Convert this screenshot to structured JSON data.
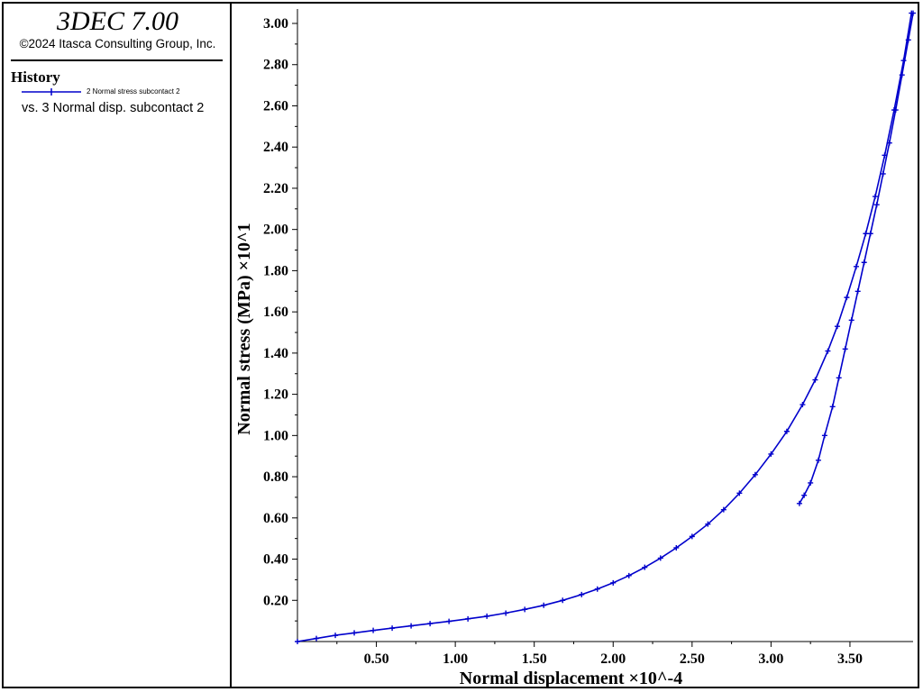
{
  "app": {
    "title": "3DEC 7.00",
    "copyright": "©2024 Itasca Consulting Group, Inc."
  },
  "legend": {
    "heading": "History",
    "series_label": "2 Normal stress subcontact 2",
    "versus_label": "vs. 3 Normal disp. subcontact 2"
  },
  "colors": {
    "series": "#0000cc",
    "axis": "#000000",
    "background": "#ffffff"
  },
  "chart_data": {
    "type": "line",
    "xlabel": "Normal displacement ×10^-4",
    "ylabel": "Normal stress (MPa) ×10^1",
    "xlim": [
      0,
      3.9
    ],
    "ylim": [
      0,
      3.07
    ],
    "x_ticks": [
      "0.50",
      "1.00",
      "1.50",
      "2.00",
      "2.50",
      "3.00",
      "3.50"
    ],
    "y_ticks": [
      "0.20",
      "0.40",
      "0.60",
      "0.80",
      "1.00",
      "1.20",
      "1.40",
      "1.60",
      "1.80",
      "2.00",
      "2.20",
      "2.40",
      "2.60",
      "2.80",
      "3.00"
    ],
    "grid": false,
    "series": [
      {
        "marker": "+",
        "points": [
          [
            0,
            0
          ],
          [
            0.12,
            0.015
          ],
          [
            0.24,
            0.03
          ],
          [
            0.36,
            0.042
          ],
          [
            0.48,
            0.054
          ],
          [
            0.6,
            0.065
          ],
          [
            0.72,
            0.076
          ],
          [
            0.84,
            0.087
          ],
          [
            0.96,
            0.098
          ],
          [
            1.08,
            0.11
          ],
          [
            1.2,
            0.123
          ],
          [
            1.32,
            0.138
          ],
          [
            1.44,
            0.156
          ],
          [
            1.56,
            0.176
          ],
          [
            1.68,
            0.2
          ],
          [
            1.8,
            0.228
          ],
          [
            1.9,
            0.255
          ],
          [
            2.0,
            0.285
          ],
          [
            2.1,
            0.32
          ],
          [
            2.2,
            0.36
          ],
          [
            2.3,
            0.405
          ],
          [
            2.4,
            0.455
          ],
          [
            2.5,
            0.51
          ],
          [
            2.6,
            0.57
          ],
          [
            2.7,
            0.64
          ],
          [
            2.8,
            0.72
          ],
          [
            2.9,
            0.81
          ],
          [
            3.0,
            0.91
          ],
          [
            3.1,
            1.02
          ],
          [
            3.2,
            1.15
          ],
          [
            3.28,
            1.27
          ],
          [
            3.36,
            1.41
          ],
          [
            3.42,
            1.53
          ],
          [
            3.48,
            1.67
          ],
          [
            3.54,
            1.82
          ],
          [
            3.6,
            1.98
          ],
          [
            3.66,
            2.16
          ],
          [
            3.72,
            2.36
          ],
          [
            3.78,
            2.58
          ],
          [
            3.84,
            2.82
          ],
          [
            3.89,
            3.05
          ]
        ]
      },
      {
        "marker": "+",
        "points": [
          [
            3.9,
            3.05
          ],
          [
            3.87,
            2.92
          ],
          [
            3.83,
            2.75
          ],
          [
            3.79,
            2.58
          ],
          [
            3.75,
            2.42
          ],
          [
            3.71,
            2.27
          ],
          [
            3.67,
            2.12
          ],
          [
            3.63,
            1.98
          ],
          [
            3.59,
            1.84
          ],
          [
            3.55,
            1.7
          ],
          [
            3.51,
            1.56
          ],
          [
            3.47,
            1.42
          ],
          [
            3.43,
            1.28
          ],
          [
            3.39,
            1.14
          ],
          [
            3.34,
            1.0
          ],
          [
            3.3,
            0.88
          ],
          [
            3.25,
            0.77
          ],
          [
            3.21,
            0.71
          ],
          [
            3.18,
            0.67
          ]
        ]
      }
    ]
  }
}
